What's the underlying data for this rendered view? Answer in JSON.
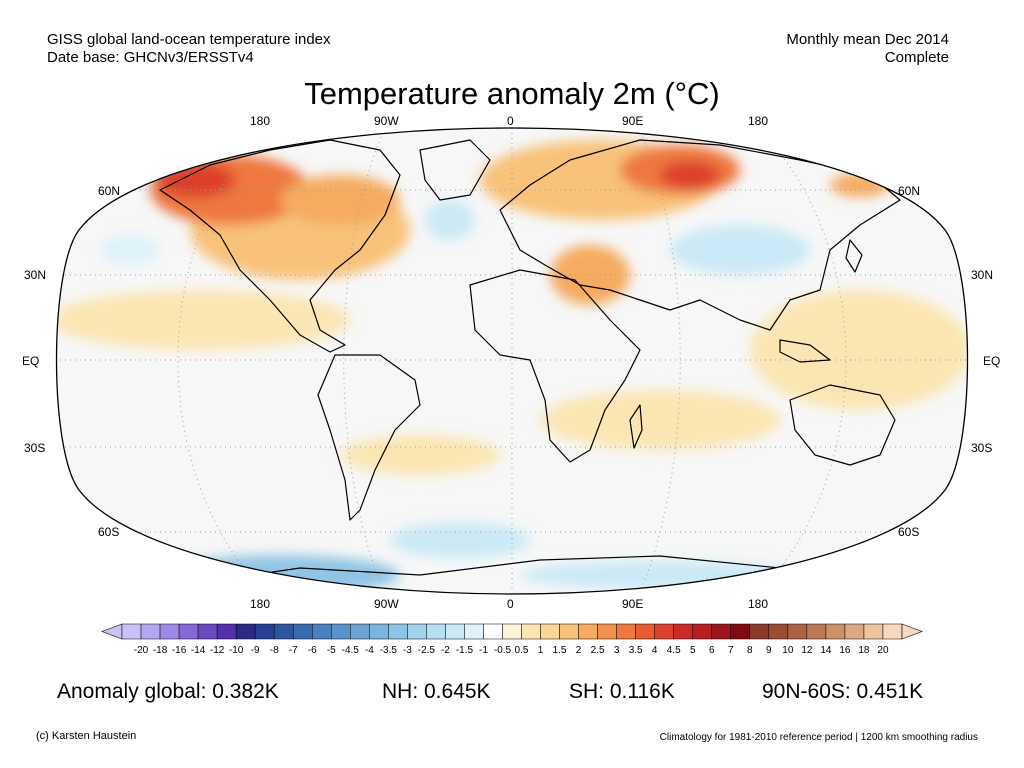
{
  "header": {
    "left_line1": "GISS global land-ocean temperature index",
    "left_line2": "Date base: GHCNv3/ERSSTv4",
    "right_line1": "Monthly mean Dec 2014",
    "right_line2": "Complete"
  },
  "title": "Temperature anomaly 2m (°C)",
  "map": {
    "projection": "Robinson",
    "top_lon_labels": [
      "180",
      "90W",
      "0",
      "90E",
      "180"
    ],
    "bottom_lon_labels": [
      "180",
      "90W",
      "0",
      "90E",
      "180"
    ],
    "lat_labels": [
      "60N",
      "30N",
      "EQ",
      "30S",
      "60S"
    ],
    "ocean_color": "#f7f7f7",
    "land_outline_color": "#000000"
  },
  "colorbar": {
    "labels": [
      "-20",
      "-18",
      "-16",
      "-14",
      "-12",
      "-10",
      "-9",
      "-8",
      "-7",
      "-6",
      "-5",
      "-4.5",
      "-4",
      "-3.5",
      "-3",
      "-2.5",
      "-2",
      "-1.5",
      "-1",
      "-0.5",
      "0.5",
      "1",
      "1.5",
      "2",
      "2.5",
      "3",
      "3.5",
      "4",
      "4.5",
      "5",
      "6",
      "7",
      "8",
      "9",
      "10",
      "12",
      "14",
      "16",
      "18",
      "20"
    ],
    "colors": [
      "#c9c3f5",
      "#b3a8ef",
      "#9c8ae6",
      "#8568d8",
      "#6c4ac4",
      "#5530a8",
      "#2d2a85",
      "#2a3f92",
      "#2f55a0",
      "#3a6bb0",
      "#4a80bd",
      "#5b93c8",
      "#6ca4d2",
      "#7eb5dc",
      "#90c4e4",
      "#a3d2eb",
      "#b8dff1",
      "#cbe9f6",
      "#def2fa",
      "#ffffff",
      "#fdf3d7",
      "#fbe6b3",
      "#fad596",
      "#f8c27a",
      "#f5ab60",
      "#f2924d",
      "#ee783f",
      "#e85c35",
      "#dd402c",
      "#cc2a27",
      "#b51e23",
      "#9c1520",
      "#7f0c14",
      "#8a3a2a",
      "#9a4d35",
      "#ab6345",
      "#bb7a57",
      "#cb916b",
      "#dba981",
      "#ebc4a0",
      "#f5d8bf"
    ]
  },
  "stats": {
    "global": "Anomaly global: 0.382K",
    "nh": "NH: 0.645K",
    "sh": "SH: 0.116K",
    "band": "90N-60S: 0.451K"
  },
  "footer": {
    "left": "(c) Karsten Haustein",
    "right": "Climatology for 1981-2010 reference period | 1200 km smoothing radius"
  }
}
